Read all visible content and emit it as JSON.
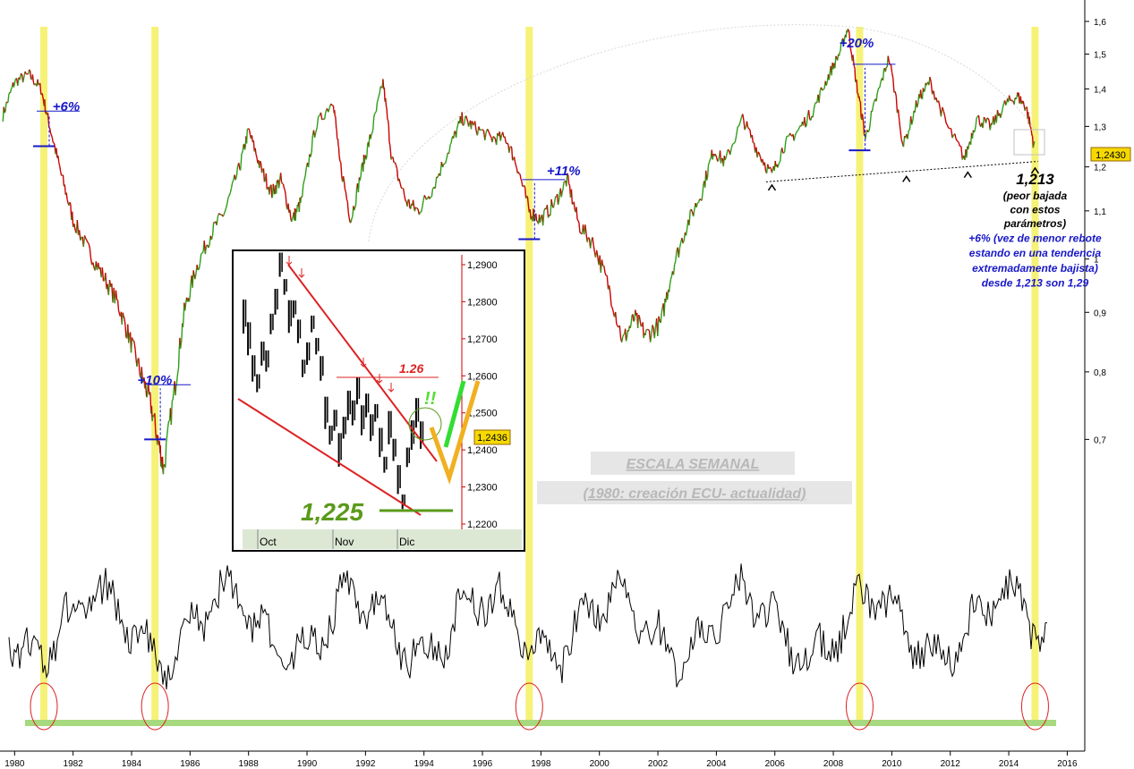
{
  "chart_data": {
    "type": "line",
    "title": "ESCALA SEMANAL",
    "subtitle": "(1980: creación ECU- actualidad)",
    "x_axis": {
      "range": [
        1979.5,
        2016.6
      ],
      "ticks": [
        "1980",
        "1982",
        "1984",
        "1986",
        "1988",
        "1990",
        "1992",
        "1994",
        "1996",
        "1998",
        "2000",
        "2002",
        "2004",
        "2006",
        "2008",
        "2010",
        "2012",
        "2014",
        "2016"
      ]
    },
    "y_axis": {
      "scale": "log",
      "range": [
        0.62,
        1.64
      ],
      "ticks": [
        {
          "value": 1.6,
          "label": "1,6"
        },
        {
          "value": 1.5,
          "label": "1,5"
        },
        {
          "value": 1.4,
          "label": "1,4"
        },
        {
          "value": 1.3,
          "label": "1,3"
        },
        {
          "value": 1.2,
          "label": "1,2"
        },
        {
          "value": 1.1,
          "label": "1,1"
        },
        {
          "value": 1.0,
          "label": "1"
        },
        {
          "value": 0.9,
          "label": "0,9"
        },
        {
          "value": 0.8,
          "label": "0,8"
        },
        {
          "value": 0.7,
          "label": "0,7"
        }
      ],
      "last_price_label": "1,2430",
      "last_price": 1.243
    },
    "series": [
      {
        "color_up": "#2e9e18",
        "color_down": "#cc0000",
        "points": [
          [
            1979.6,
            1.33
          ],
          [
            1980.0,
            1.42
          ],
          [
            1980.5,
            1.44
          ],
          [
            1980.9,
            1.4
          ],
          [
            1981.2,
            1.3
          ],
          [
            1981.6,
            1.18
          ],
          [
            1982.0,
            1.08
          ],
          [
            1982.5,
            1.02
          ],
          [
            1983.0,
            0.97
          ],
          [
            1983.5,
            0.92
          ],
          [
            1983.9,
            0.86
          ],
          [
            1984.3,
            0.8
          ],
          [
            1984.6,
            0.76
          ],
          [
            1984.9,
            0.7
          ],
          [
            1985.1,
            0.66
          ],
          [
            1985.5,
            0.78
          ],
          [
            1985.8,
            0.9
          ],
          [
            1986.2,
            0.98
          ],
          [
            1986.7,
            1.05
          ],
          [
            1987.2,
            1.1
          ],
          [
            1987.7,
            1.2
          ],
          [
            1988.0,
            1.29
          ],
          [
            1988.4,
            1.2
          ],
          [
            1988.8,
            1.14
          ],
          [
            1989.1,
            1.17
          ],
          [
            1989.5,
            1.08
          ],
          [
            1989.8,
            1.12
          ],
          [
            1990.3,
            1.3
          ],
          [
            1990.9,
            1.37
          ],
          [
            1991.1,
            1.22
          ],
          [
            1991.5,
            1.08
          ],
          [
            1991.9,
            1.2
          ],
          [
            1992.2,
            1.28
          ],
          [
            1992.6,
            1.42
          ],
          [
            1992.9,
            1.22
          ],
          [
            1993.4,
            1.12
          ],
          [
            1993.8,
            1.1
          ],
          [
            1994.3,
            1.15
          ],
          [
            1994.9,
            1.25
          ],
          [
            1995.3,
            1.32
          ],
          [
            1995.7,
            1.3
          ],
          [
            1996.3,
            1.27
          ],
          [
            1996.8,
            1.27
          ],
          [
            1997.2,
            1.2
          ],
          [
            1997.6,
            1.1
          ],
          [
            1998.0,
            1.08
          ],
          [
            1998.5,
            1.12
          ],
          [
            1998.9,
            1.17
          ],
          [
            1999.3,
            1.07
          ],
          [
            1999.8,
            1.03
          ],
          [
            2000.3,
            0.95
          ],
          [
            2000.8,
            0.85
          ],
          [
            2001.2,
            0.89
          ],
          [
            2001.6,
            0.86
          ],
          [
            2002.1,
            0.88
          ],
          [
            2002.5,
            0.98
          ],
          [
            2003.0,
            1.07
          ],
          [
            2003.5,
            1.14
          ],
          [
            2003.9,
            1.24
          ],
          [
            2004.3,
            1.21
          ],
          [
            2004.9,
            1.32
          ],
          [
            2005.4,
            1.24
          ],
          [
            2005.9,
            1.18
          ],
          [
            2006.3,
            1.25
          ],
          [
            2006.8,
            1.29
          ],
          [
            2007.3,
            1.34
          ],
          [
            2007.8,
            1.43
          ],
          [
            2008.2,
            1.5
          ],
          [
            2008.5,
            1.58
          ],
          [
            2008.8,
            1.41
          ],
          [
            2009.1,
            1.27
          ],
          [
            2009.5,
            1.38
          ],
          [
            2009.9,
            1.49
          ],
          [
            2010.4,
            1.25
          ],
          [
            2010.9,
            1.37
          ],
          [
            2011.3,
            1.42
          ],
          [
            2011.9,
            1.3
          ],
          [
            2012.5,
            1.22
          ],
          [
            2012.9,
            1.32
          ],
          [
            2013.4,
            1.3
          ],
          [
            2013.9,
            1.36
          ],
          [
            2014.3,
            1.38
          ],
          [
            2014.6,
            1.35
          ],
          [
            2014.9,
            1.24
          ]
        ]
      }
    ],
    "support_line": {
      "from": [
        2005.7,
        1.165
      ],
      "to": [
        2015.0,
        1.213
      ]
    },
    "annotations": [
      {
        "text": "+6%",
        "x": 1981.3,
        "y": 1.34,
        "color": "#1818c8"
      },
      {
        "text": "+10%",
        "x": 1984.2,
        "y": 0.78,
        "color": "#1818c8"
      },
      {
        "text": "+11%",
        "x": 1998.2,
        "y": 1.18,
        "color": "#1818c8"
      },
      {
        "text": "+20%",
        "x": 2008.2,
        "y": 1.52,
        "color": "#1818c8"
      },
      {
        "text": "1,213",
        "x": 2014.9,
        "y": 1.16,
        "color": "#000000"
      },
      {
        "text": "(peor bajada",
        "x": 2014.9,
        "y": 1.125,
        "color": "#000000"
      },
      {
        "text": "con estos",
        "x": 2014.9,
        "y": 1.095,
        "color": "#000000"
      },
      {
        "text": "parámetros)",
        "x": 2014.9,
        "y": 1.065,
        "color": "#000000"
      },
      {
        "text": "+6% (vez de menor rebote",
        "x": 2014.9,
        "y": 1.035,
        "color": "#1818c8"
      },
      {
        "text": "estando en una tendencia",
        "x": 2014.9,
        "y": 1.005,
        "color": "#1818c8"
      },
      {
        "text": "extremadamente bajista)",
        "x": 2014.9,
        "y": 0.975,
        "color": "#1818c8"
      },
      {
        "text": "desde 1,213 son 1,29",
        "x": 2014.9,
        "y": 0.947,
        "color": "#1818c8"
      }
    ],
    "highlights": [
      {
        "x": 1981.0
      },
      {
        "x": 1984.8
      },
      {
        "x": 1997.6
      },
      {
        "x": 2008.9
      },
      {
        "x": 2014.9
      }
    ],
    "bottom_oscillator_lows": [
      1981.0,
      1984.8,
      1997.6,
      2008.9,
      2014.9
    ]
  },
  "inset_chart": {
    "type": "line",
    "x_ticks": [
      "Oct",
      "Nov",
      "Dic"
    ],
    "y_ticks": [
      "1,2900",
      "1,2800",
      "1,2700",
      "1,2600",
      "1,2500",
      "1,2400",
      "1,2300",
      "1,2200"
    ],
    "y_range": [
      1.218,
      1.292
    ],
    "last_price_label": "1,2436",
    "label_126": "1.26",
    "label_1225": "1,225",
    "label_bang": "!!",
    "points": [
      [
        0,
        1.276
      ],
      [
        2,
        1.27
      ],
      [
        4,
        1.262
      ],
      [
        6,
        1.258
      ],
      [
        8,
        1.266
      ],
      [
        10,
        1.264
      ],
      [
        12,
        1.274
      ],
      [
        14,
        1.28
      ],
      [
        16,
        1.29
      ],
      [
        18,
        1.284
      ],
      [
        20,
        1.276
      ],
      [
        22,
        1.278
      ],
      [
        24,
        1.272
      ],
      [
        26,
        1.262
      ],
      [
        28,
        1.266
      ],
      [
        30,
        1.274
      ],
      [
        32,
        1.268
      ],
      [
        34,
        1.262
      ],
      [
        36,
        1.25
      ],
      [
        38,
        1.244
      ],
      [
        40,
        1.248
      ],
      [
        42,
        1.24
      ],
      [
        44,
        1.246
      ],
      [
        46,
        1.252
      ],
      [
        48,
        1.25
      ],
      [
        50,
        1.256
      ],
      [
        52,
        1.248
      ],
      [
        54,
        1.252
      ],
      [
        56,
        1.246
      ],
      [
        58,
        1.25
      ],
      [
        60,
        1.242
      ],
      [
        62,
        1.236
      ],
      [
        64,
        1.246
      ],
      [
        66,
        1.24
      ],
      [
        68,
        1.232
      ],
      [
        70,
        1.226
      ],
      [
        72,
        1.238
      ],
      [
        74,
        1.244
      ],
      [
        76,
        1.25
      ],
      [
        78,
        1.244
      ]
    ]
  }
}
